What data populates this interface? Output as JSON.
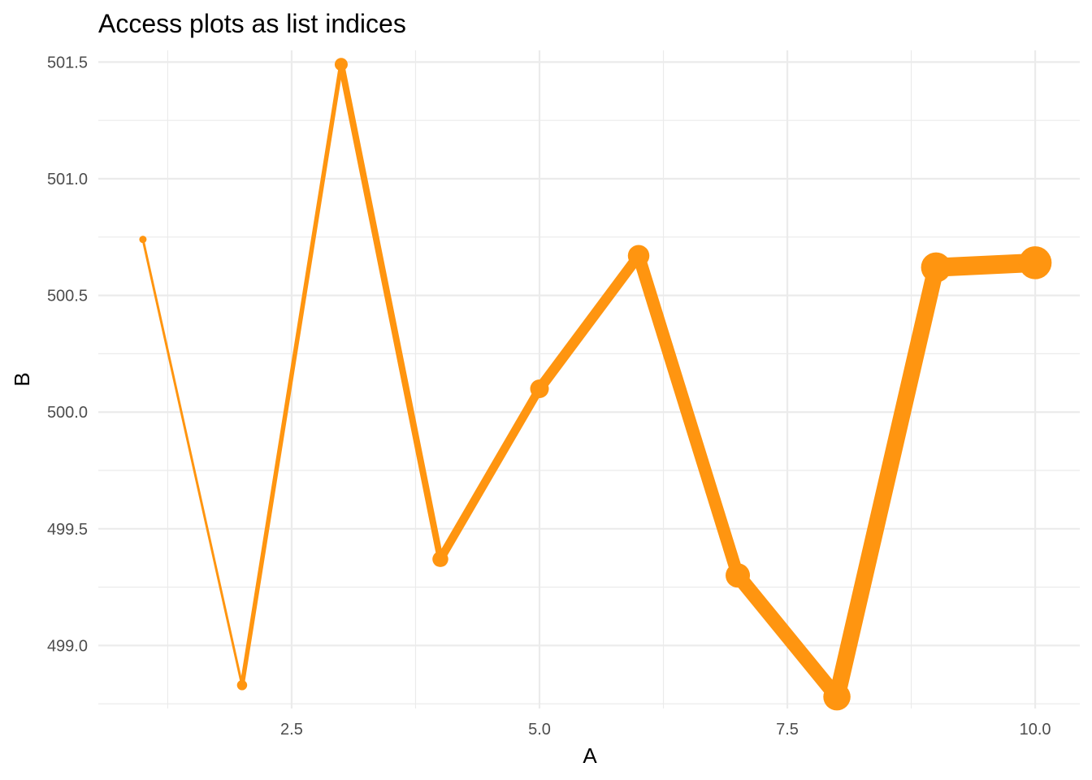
{
  "chart_data": {
    "type": "line",
    "title": "Access plots as list indices",
    "xlabel": "A",
    "ylabel": "B",
    "x": [
      1,
      2,
      3,
      4,
      5,
      6,
      7,
      8,
      9,
      10
    ],
    "series": [
      {
        "values": [
          500.74,
          498.83,
          501.49,
          499.37,
          500.1,
          500.67,
          499.3,
          498.78,
          500.62,
          500.64
        ],
        "color": "#ff9510"
      }
    ],
    "xlim": [
      0.55,
      10.45
    ],
    "ylim": [
      498.73,
      501.55
    ],
    "x_ticks": [
      2.5,
      5.0,
      7.5,
      10.0
    ],
    "x_tick_labels": [
      "2.5",
      "5.0",
      "7.5",
      "10.0"
    ],
    "y_ticks": [
      499.0,
      499.5,
      500.0,
      500.5,
      501.0,
      501.5
    ],
    "y_tick_labels": [
      "499.0",
      "499.5",
      "500.0",
      "500.5",
      "501.0",
      "501.5"
    ],
    "grid": true,
    "legend": "none",
    "line_width_encoding": "increasing with x"
  }
}
